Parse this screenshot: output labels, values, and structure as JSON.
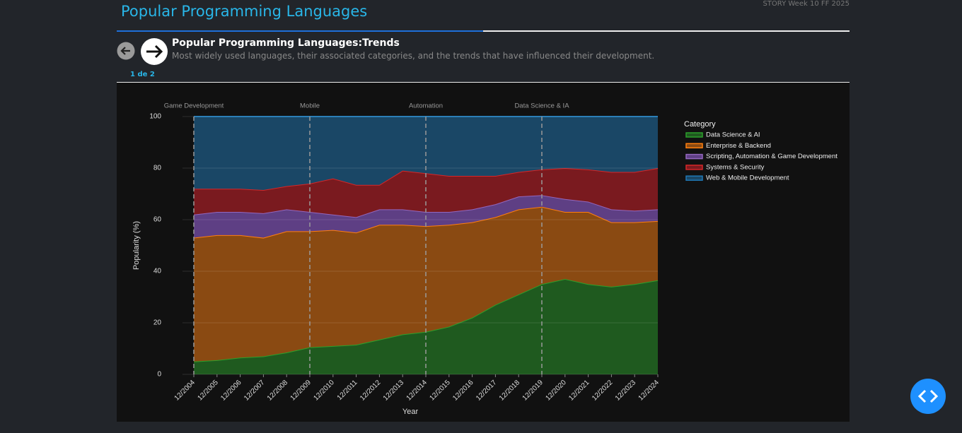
{
  "header": {
    "title": "Popular Programming Languages",
    "story": "STORY Week 10 FF 2025"
  },
  "slide": {
    "title": "Popular Programming Languages:Trends",
    "subtitle": "Most widely used languages, their associated categories, and the trends that have influenced their development.",
    "pager": "1 de 2"
  },
  "chart_data": {
    "type": "stacked_area",
    "x_label": "Year",
    "y_label": "Popularity (%)",
    "legend_title": "Category",
    "legend": "right",
    "grid": true,
    "categories": [
      "12/2004",
      "12/2005",
      "12/2006",
      "12/2007",
      "12/2008",
      "12/2009",
      "12/2010",
      "12/2011",
      "12/2012",
      "12/2013",
      "12/2014",
      "12/2015",
      "12/2016",
      "12/2017",
      "12/2018",
      "12/2019",
      "12/2020",
      "12/2021",
      "12/2022",
      "12/2023",
      "12/2024"
    ],
    "ylim": [
      0,
      100
    ],
    "yticks": [
      0,
      20,
      40,
      60,
      80,
      100
    ],
    "annotations": [
      {
        "text": "Game Development",
        "x": "12/2004"
      },
      {
        "text": "Mobile",
        "x": "12/2009"
      },
      {
        "text": "Automation",
        "x": "12/2014"
      },
      {
        "text": "Data Science & IA",
        "x": "12/2019"
      }
    ],
    "series": [
      {
        "name": "Data Science & AI",
        "color": "#2ca02c",
        "fill": "#1f5a1f",
        "values": [
          5,
          5.5,
          6.5,
          7,
          8.5,
          10.5,
          11,
          11.5,
          13.5,
          15.5,
          16.5,
          18.5,
          22,
          27,
          31,
          35,
          37,
          35,
          34,
          35,
          36.5
        ]
      },
      {
        "name": "Enterprise & Backend",
        "color": "#ff7f0e",
        "fill": "#8a4a12",
        "values": [
          48,
          48.5,
          47.5,
          46,
          47,
          45,
          45,
          43.5,
          44.5,
          42.5,
          41,
          39.5,
          37,
          34,
          33,
          30,
          26,
          28,
          25,
          24,
          23
        ]
      },
      {
        "name": "Scripting, Automation & Game Development",
        "color": "#9467bd",
        "fill": "#5e3f84",
        "values": [
          9,
          9,
          9,
          9.5,
          8.5,
          7.5,
          6,
          6,
          6,
          6,
          5.5,
          5,
          5,
          5,
          5,
          4.5,
          5,
          4,
          5,
          4.5,
          4.5
        ]
      },
      {
        "name": "Systems & Security",
        "color": "#d62728",
        "fill": "#7a1a1f",
        "values": [
          10,
          9,
          9,
          9,
          9,
          11,
          14,
          12.5,
          9.5,
          15,
          15,
          14,
          13,
          11,
          9.5,
          10,
          12,
          12.5,
          14.5,
          15,
          16
        ]
      },
      {
        "name": "Web & Mobile Development",
        "color": "#1f77b4",
        "fill": "#1a4766",
        "values": [
          28,
          28,
          28,
          28.5,
          27,
          26,
          24,
          26.5,
          26.5,
          21,
          22,
          23,
          23,
          23,
          21.5,
          20.5,
          20,
          20.5,
          21.5,
          21.5,
          20
        ]
      }
    ]
  }
}
